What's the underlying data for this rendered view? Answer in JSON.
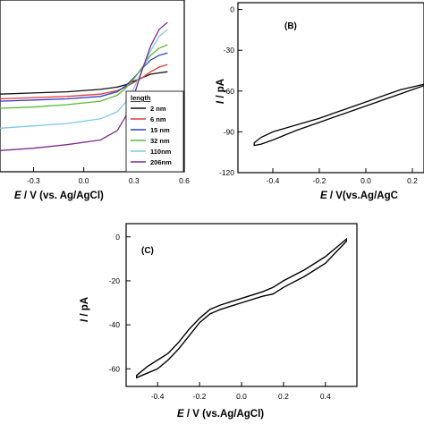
{
  "chart_data": [
    {
      "panel": "A",
      "type": "line",
      "xlabel_italic": "E",
      "xlabel_rest": " / V (vs. Ag/AgCl)",
      "xticks": [
        "-0.3",
        "0.0",
        "0.3",
        "0.6"
      ],
      "xlim": [
        -0.5,
        0.6
      ],
      "legend_title": "length",
      "series": [
        {
          "name": "2 nm",
          "color": "#111111",
          "x": [
            -0.5,
            -0.3,
            -0.1,
            0.1,
            0.2,
            0.25,
            0.3,
            0.35,
            0.4,
            0.45,
            0.5
          ],
          "y": [
            3,
            4,
            5,
            7,
            9,
            11,
            14,
            17,
            20,
            21,
            22
          ]
        },
        {
          "name": "6 nm",
          "color": "#e53935",
          "x": [
            -0.5,
            -0.3,
            -0.1,
            0.1,
            0.2,
            0.25,
            0.3,
            0.35,
            0.4,
            0.45,
            0.5
          ],
          "y": [
            -1,
            0,
            1,
            3,
            6,
            9,
            13,
            17,
            22,
            26,
            28
          ]
        },
        {
          "name": "15 nm",
          "color": "#2e3fbf",
          "x": [
            -0.5,
            -0.3,
            -0.1,
            0.1,
            0.2,
            0.25,
            0.3,
            0.35,
            0.4,
            0.45,
            0.5
          ],
          "y": [
            -3,
            -2,
            -1,
            1,
            5,
            10,
            17,
            25,
            32,
            36,
            38
          ]
        },
        {
          "name": "32 nm",
          "color": "#5cb83a",
          "x": [
            -0.5,
            -0.3,
            -0.1,
            0.1,
            0.2,
            0.25,
            0.3,
            0.35,
            0.4,
            0.45,
            0.5
          ],
          "y": [
            -9,
            -8,
            -6,
            -3,
            2,
            8,
            16,
            26,
            36,
            42,
            45
          ]
        },
        {
          "name": "110nm",
          "color": "#7fc8e6",
          "x": [
            -0.5,
            -0.3,
            -0.1,
            0.1,
            0.2,
            0.25,
            0.3,
            0.35,
            0.4,
            0.45,
            0.5
          ],
          "y": [
            -26,
            -24,
            -22,
            -18,
            -12,
            -4,
            8,
            24,
            40,
            52,
            58
          ]
        },
        {
          "name": "206nm",
          "color": "#7b2d8e",
          "x": [
            -0.5,
            -0.3,
            -0.1,
            0.1,
            0.2,
            0.25,
            0.3,
            0.35,
            0.4,
            0.45,
            0.5
          ],
          "y": [
            -45,
            -43,
            -40,
            -36,
            -28,
            -16,
            2,
            24,
            44,
            58,
            64
          ]
        }
      ]
    },
    {
      "panel": "B",
      "type": "line",
      "label": "(B)",
      "xlabel_italic": "E",
      "xlabel_rest": " / V(vs.Ag/AgC",
      "ylabel_italic": "I",
      "ylabel_rest": " / pA",
      "xticks": [
        "-0.4",
        "-0.2",
        "0.0",
        "0.2"
      ],
      "yticks": [
        "0",
        "-30",
        "-60",
        "-90",
        "-120"
      ],
      "xlim": [
        -0.55,
        0.25
      ],
      "ylim": [
        -120,
        5
      ],
      "x": [
        -0.48,
        -0.45,
        -0.4,
        -0.3,
        -0.2,
        -0.1,
        0.0,
        0.1,
        0.15,
        0.2,
        0.25,
        0.25,
        0.2,
        0.1,
        0.0,
        -0.1,
        -0.2,
        -0.3,
        -0.4,
        -0.45,
        -0.48
      ],
      "y": [
        -98,
        -94,
        -90,
        -85,
        -80,
        -74,
        -68,
        -62,
        -59,
        -57,
        -55,
        -56,
        -59,
        -65,
        -71,
        -77,
        -83,
        -89,
        -96,
        -99,
        -100
      ]
    },
    {
      "panel": "C",
      "type": "line",
      "label": "(C)",
      "xlabel_italic": "E",
      "xlabel_rest": " / V (vs.Ag/AgCl)",
      "ylabel_italic": "I",
      "ylabel_rest": " / pA",
      "xticks": [
        "-0.4",
        "-0.2",
        "0.0",
        "0.2",
        "0.4"
      ],
      "yticks": [
        "0",
        "-20",
        "-40",
        "-60"
      ],
      "xlim": [
        -0.55,
        0.55
      ],
      "ylim": [
        -68,
        6
      ],
      "x": [
        -0.5,
        -0.45,
        -0.4,
        -0.35,
        -0.3,
        -0.25,
        -0.2,
        -0.15,
        -0.1,
        0.0,
        0.1,
        0.15,
        0.2,
        0.3,
        0.4,
        0.45,
        0.5,
        0.5,
        0.45,
        0.4,
        0.3,
        0.2,
        0.15,
        0.1,
        0.0,
        -0.1,
        -0.15,
        -0.2,
        -0.25,
        -0.3,
        -0.35,
        -0.4,
        -0.45,
        -0.5
      ],
      "y": [
        -63,
        -59,
        -56,
        -53,
        -48,
        -42,
        -37,
        -33,
        -31,
        -28,
        -25,
        -23,
        -20,
        -15,
        -9,
        -5,
        -1,
        -2,
        -7,
        -12,
        -18,
        -23,
        -26,
        -27,
        -30,
        -33,
        -35,
        -39,
        -45,
        -51,
        -56,
        -60,
        -62,
        -64
      ]
    }
  ]
}
